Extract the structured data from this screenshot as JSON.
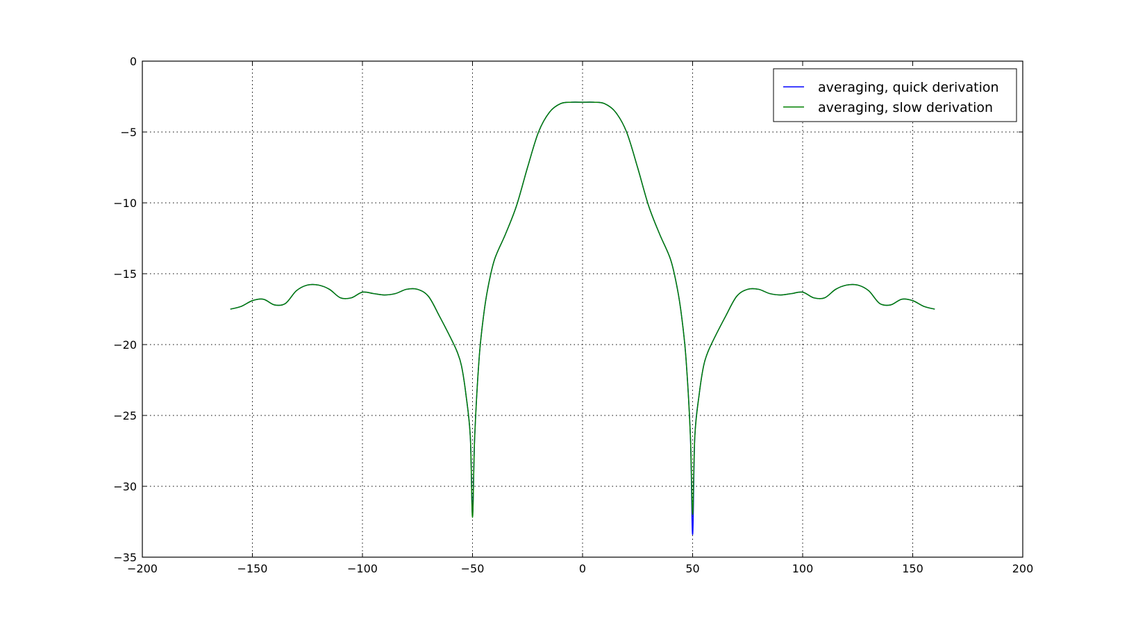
{
  "chart_data": {
    "type": "line",
    "title": "",
    "xlabel": "",
    "ylabel": "",
    "xlim": [
      -200,
      200
    ],
    "ylim": [
      -35,
      0
    ],
    "grid": true,
    "legend_position": "top-right",
    "xticks": [
      -200,
      -150,
      -100,
      -50,
      0,
      50,
      100,
      150,
      200
    ],
    "yticks": [
      0,
      -5,
      -10,
      -15,
      -20,
      -25,
      -30,
      -35
    ],
    "xtick_labels": [
      "−200",
      "−150",
      "−100",
      "−50",
      "0",
      "50",
      "100",
      "150",
      "200"
    ],
    "ytick_labels": [
      "0",
      "−5",
      "−10",
      "−15",
      "−20",
      "−25",
      "−30",
      "−35"
    ],
    "x": [
      -160,
      -155,
      -150,
      -145,
      -140,
      -135,
      -130,
      -125,
      -120,
      -115,
      -110,
      -105,
      -100,
      -95,
      -90,
      -85,
      -80,
      -75,
      -70,
      -65,
      -60,
      -57,
      -55,
      -53,
      -51,
      -50,
      -49,
      -47,
      -45,
      -43,
      -40,
      -35,
      -30,
      -25,
      -20,
      -15,
      -10,
      -5,
      0,
      5,
      10,
      15,
      20,
      25,
      30,
      35,
      40,
      43,
      45,
      47,
      49,
      50,
      51,
      53,
      55,
      57,
      60,
      65,
      70,
      75,
      80,
      85,
      90,
      95,
      100,
      105,
      110,
      115,
      120,
      125,
      130,
      135,
      140,
      145,
      150,
      155,
      160
    ],
    "series": [
      {
        "name": "averaging, quick derivation",
        "color": "#0000ff",
        "values": [
          -17.5,
          -17.3,
          -16.9,
          -16.8,
          -17.2,
          -17.1,
          -16.2,
          -15.8,
          -15.8,
          -16.1,
          -16.7,
          -16.7,
          -16.3,
          -16.4,
          -16.5,
          -16.4,
          -16.1,
          -16.1,
          -16.6,
          -18.0,
          -19.5,
          -20.5,
          -21.5,
          -23.5,
          -26.5,
          -32.0,
          -26.5,
          -21.0,
          -18.0,
          -16.0,
          -14.0,
          -12.2,
          -10.2,
          -7.5,
          -5.0,
          -3.6,
          -3.0,
          -2.9,
          -2.9,
          -2.9,
          -3.0,
          -3.6,
          -5.0,
          -7.5,
          -10.2,
          -12.2,
          -14.0,
          -16.0,
          -18.0,
          -21.0,
          -26.5,
          -33.4,
          -26.5,
          -23.5,
          -21.5,
          -20.5,
          -19.5,
          -18.0,
          -16.6,
          -16.1,
          -16.1,
          -16.4,
          -16.5,
          -16.4,
          -16.3,
          -16.7,
          -16.7,
          -16.1,
          -15.8,
          -15.8,
          -16.2,
          -17.1,
          -17.2,
          -16.8,
          -16.9,
          -17.3,
          -17.5
        ]
      },
      {
        "name": "averaging, slow derivation",
        "color": "#008000",
        "values": [
          -17.5,
          -17.3,
          -16.9,
          -16.8,
          -17.2,
          -17.1,
          -16.2,
          -15.8,
          -15.8,
          -16.1,
          -16.7,
          -16.7,
          -16.3,
          -16.4,
          -16.5,
          -16.4,
          -16.1,
          -16.1,
          -16.6,
          -18.0,
          -19.5,
          -20.5,
          -21.5,
          -23.5,
          -26.5,
          -32.2,
          -26.5,
          -21.0,
          -18.0,
          -16.0,
          -14.0,
          -12.2,
          -10.2,
          -7.5,
          -5.0,
          -3.6,
          -3.0,
          -2.9,
          -2.9,
          -2.9,
          -3.0,
          -3.6,
          -5.0,
          -7.5,
          -10.2,
          -12.2,
          -14.0,
          -16.0,
          -18.0,
          -21.0,
          -26.5,
          -32.0,
          -26.5,
          -23.5,
          -21.5,
          -20.5,
          -19.5,
          -18.0,
          -16.6,
          -16.1,
          -16.1,
          -16.4,
          -16.5,
          -16.4,
          -16.3,
          -16.7,
          -16.7,
          -16.1,
          -15.8,
          -15.8,
          -16.2,
          -17.1,
          -17.2,
          -16.8,
          -16.9,
          -17.3,
          -17.5
        ]
      }
    ]
  }
}
